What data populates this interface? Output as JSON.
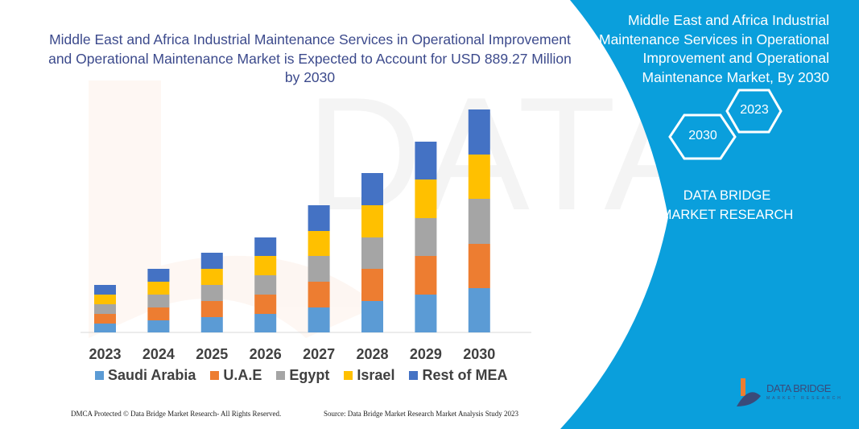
{
  "title": "Middle East and Africa Industrial Maintenance Services in Operational Improvement and Operational Maintenance Market is Expected to Account for USD 889.27 Million by 2030",
  "side_panel": {
    "title": "Middle East and Africa Industrial Maintenance Services in Operational Improvement and Operational Maintenance Market, By 2030",
    "hex_years": [
      "2023",
      "2030"
    ],
    "brand": "DATA BRIDGE MARKET RESEARCH",
    "color": "#0a9fdc"
  },
  "logo": {
    "text": "DATA BRIDGE",
    "sub": "MARKET RESEARCH"
  },
  "footer": {
    "left": "DMCA Protected © Data Bridge Market Research- All Rights Reserved.",
    "right": "Source: Data Bridge Market Research  Market Analysis Study 2023"
  },
  "chart_data": {
    "type": "bar",
    "stacked": true,
    "categories": [
      "2023",
      "2024",
      "2025",
      "2026",
      "2027",
      "2028",
      "2029",
      "2030"
    ],
    "series": [
      {
        "name": "Saudi Arabia",
        "color": "#5b9bd5",
        "values": [
          11,
          15,
          19,
          23,
          31,
          39,
          47,
          55
        ]
      },
      {
        "name": "U.A.E",
        "color": "#ed7d31",
        "values": [
          12,
          16,
          20,
          24,
          32,
          40,
          48,
          55
        ]
      },
      {
        "name": "Egypt",
        "color": "#a5a5a5",
        "values": [
          12,
          16,
          20,
          24,
          32,
          39,
          47,
          56
        ]
      },
      {
        "name": "Israel",
        "color": "#ffc000",
        "values": [
          12,
          16,
          20,
          24,
          31,
          40,
          48,
          55
        ]
      },
      {
        "name": "Rest of MEA",
        "color": "#4472c4",
        "values": [
          12,
          16,
          20,
          23,
          32,
          40,
          47,
          56
        ]
      }
    ],
    "ylim": [
      0,
      300
    ],
    "grid": false,
    "legend": "bottom"
  }
}
